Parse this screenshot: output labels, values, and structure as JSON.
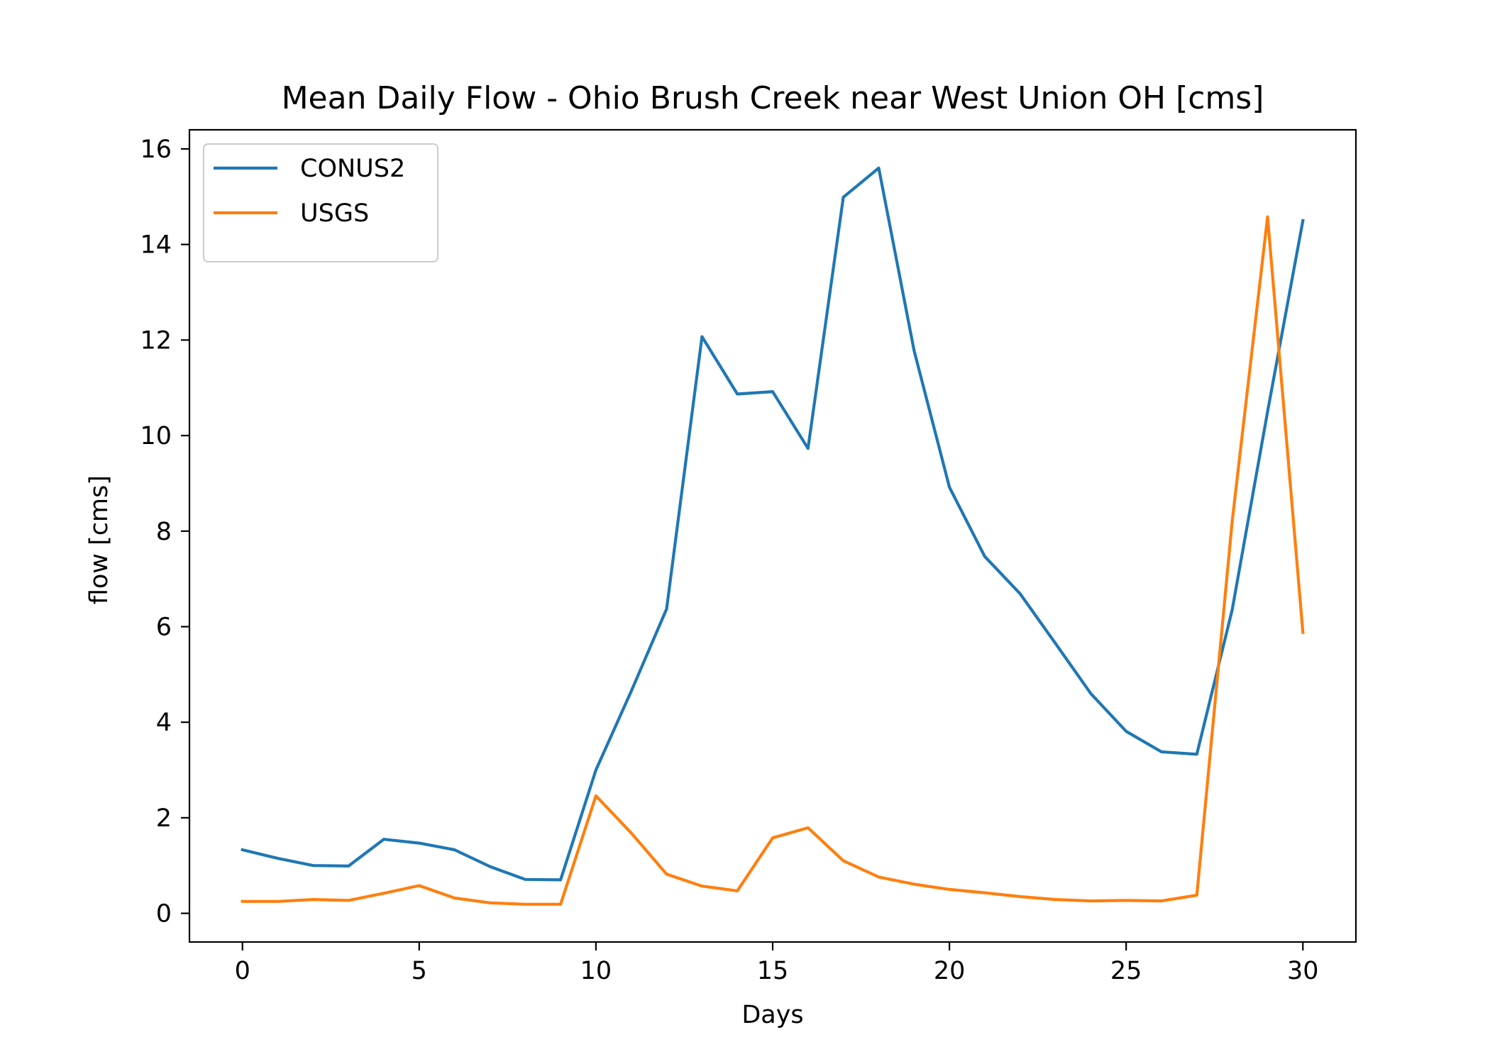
{
  "chart_data": {
    "type": "line",
    "title": "Mean Daily Flow - Ohio Brush Creek near West Union OH [cms]",
    "xlabel": "Days",
    "ylabel": "flow [cms]",
    "xlim": [
      -1.5,
      31.5
    ],
    "ylim": [
      -0.6,
      16.4
    ],
    "xticks": [
      0,
      5,
      10,
      15,
      20,
      25,
      30
    ],
    "yticks": [
      0,
      2,
      4,
      6,
      8,
      10,
      12,
      14,
      16
    ],
    "grid": false,
    "legend_position": "upper-left",
    "x": [
      0,
      1,
      2,
      3,
      4,
      5,
      6,
      7,
      8,
      9,
      10,
      11,
      12,
      13,
      14,
      15,
      16,
      17,
      18,
      19,
      20,
      21,
      22,
      23,
      24,
      25,
      26,
      27,
      28,
      29,
      30
    ],
    "series": [
      {
        "name": "CONUS2",
        "color": "#1f77b4",
        "values": [
          1.33,
          1.15,
          1.0,
          0.99,
          1.55,
          1.47,
          1.33,
          0.98,
          0.71,
          0.7,
          3.0,
          4.65,
          6.37,
          12.07,
          10.87,
          10.92,
          9.73,
          14.99,
          15.6,
          11.78,
          8.92,
          7.47,
          6.69,
          5.65,
          4.6,
          3.81,
          3.38,
          3.33,
          6.35,
          10.5,
          14.5
        ]
      },
      {
        "name": "USGS",
        "color": "#ff7f0e",
        "values": [
          0.25,
          0.25,
          0.29,
          0.27,
          0.42,
          0.58,
          0.32,
          0.22,
          0.19,
          0.19,
          2.46,
          1.68,
          0.82,
          0.57,
          0.47,
          1.58,
          1.79,
          1.1,
          0.76,
          0.61,
          0.5,
          0.43,
          0.35,
          0.29,
          0.26,
          0.27,
          0.26,
          0.38,
          8.2,
          14.58,
          5.88
        ]
      }
    ]
  }
}
